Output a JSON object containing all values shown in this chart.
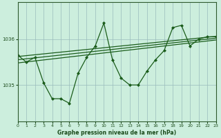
{
  "xlabel_label": "Graphe pression niveau de la mer (hPa)",
  "bg_color": "#cceedd",
  "plot_bg_color": "#cceedd",
  "line_color": "#1a5c1a",
  "grid_color": "#99bbbb",
  "axis_color": "#2d5a2d",
  "text_color": "#1a4a1a",
  "ylim": [
    1034.2,
    1036.8
  ],
  "xlim": [
    0,
    23
  ],
  "yticks": [
    1035,
    1036
  ],
  "xticks": [
    0,
    1,
    2,
    3,
    4,
    5,
    6,
    7,
    8,
    9,
    10,
    11,
    12,
    13,
    14,
    15,
    16,
    17,
    18,
    19,
    20,
    21,
    22,
    23
  ],
  "zigzag": [
    1035.65,
    1035.5,
    1035.6,
    1035.05,
    1034.7,
    1034.7,
    1034.6,
    1035.25,
    1035.6,
    1035.85,
    1036.35,
    1035.55,
    1035.15,
    1035.0,
    1035.0,
    1035.3,
    1035.55,
    1035.75,
    1036.25,
    1036.3,
    1035.85,
    1036.0,
    1036.05,
    1036.05
  ]
}
